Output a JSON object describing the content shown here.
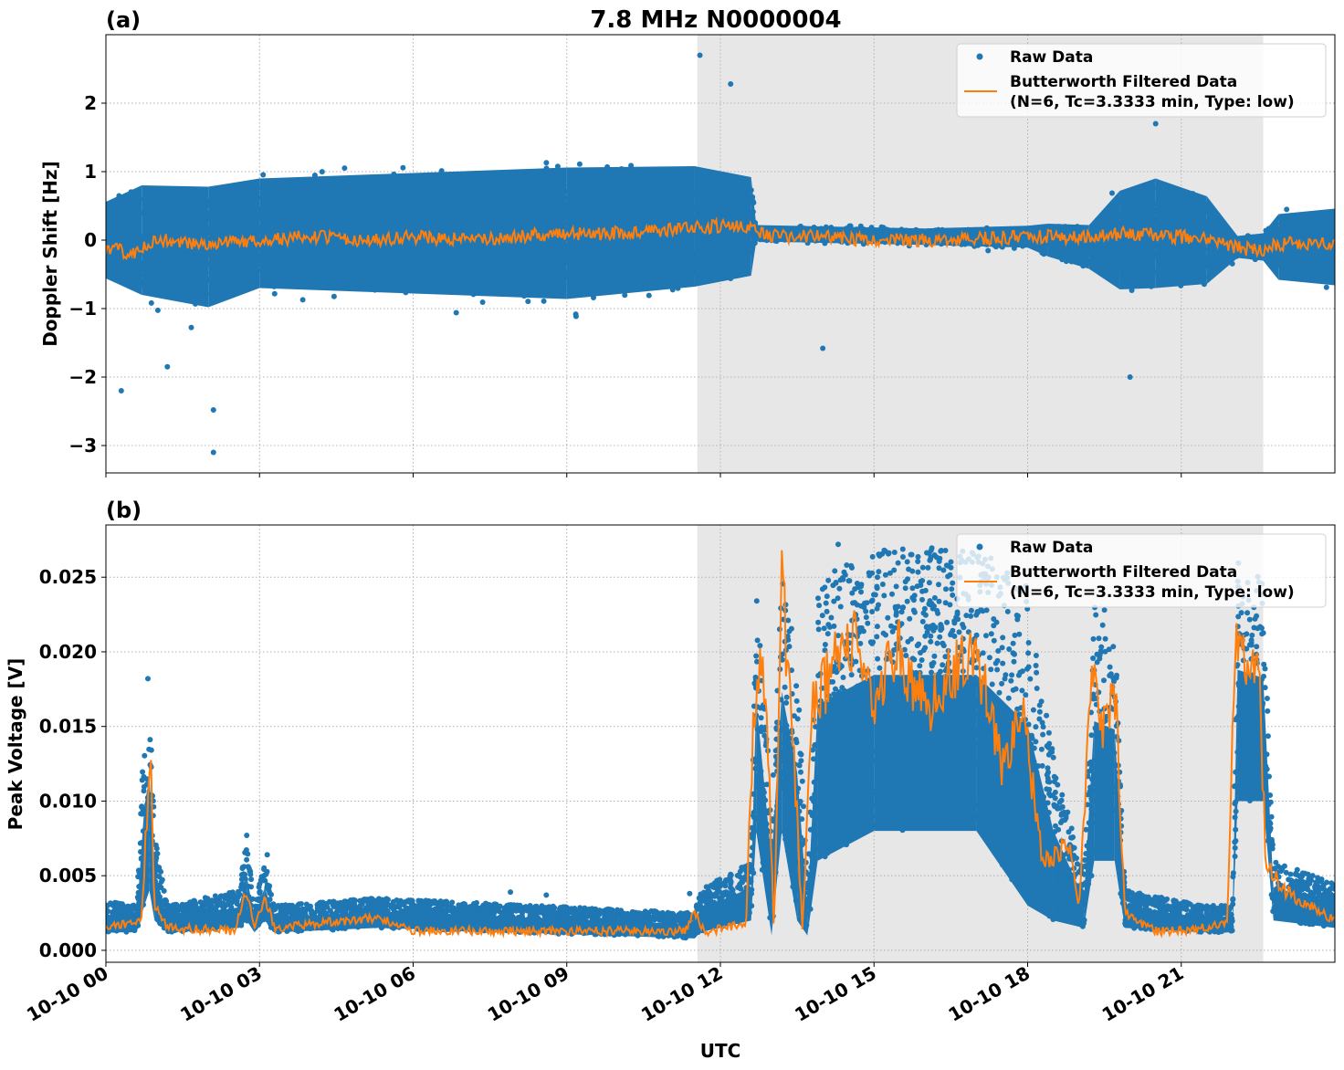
{
  "figure_title": "7.8 MHz N0000004",
  "colors": {
    "raw": "#1f77b4",
    "filtered": "#ff7f0e",
    "shade": "#e7e7e7",
    "grid": "#b0b0b0"
  },
  "x_ticks": [
    "10-10 00",
    "10-10 03",
    "10-10 06",
    "10-10 09",
    "10-10 12",
    "10-10 15",
    "10-10 18",
    "10-10 21"
  ],
  "xlabel": "UTC",
  "legend": {
    "raw": "Raw Data",
    "filtered_line1": "Butterworth Filtered Data",
    "filtered_line2": "(N=6, Tc=3.3333 min, Type: low)"
  },
  "chart_data": [
    {
      "type": "scatter",
      "panel_label": "(a)",
      "title": "7.8 MHz N0000004",
      "xlabel": "",
      "ylabel": "Doppler Shift [Hz]",
      "x_unit": "hours UTC on 10-10",
      "xlim": [
        0,
        24
      ],
      "ylim": [
        -3.4,
        3.0
      ],
      "y_ticks": [
        "−3",
        "−2",
        "−1",
        "0",
        "1",
        "2"
      ],
      "y_tick_values": [
        -3,
        -2,
        -1,
        0,
        1,
        2
      ],
      "shaded_region": [
        11.55,
        22.6
      ],
      "grid": true,
      "legend_position": "top-right",
      "series": [
        {
          "name": "Raw Data",
          "kind": "points",
          "spread_profile": [
            [
              0,
              0.0,
              0.7
            ],
            [
              0.7,
              0.0,
              1.0
            ],
            [
              2.0,
              -0.1,
              1.1
            ],
            [
              3.0,
              0.1,
              1.0
            ],
            [
              6.0,
              0.1,
              1.1
            ],
            [
              9.0,
              0.1,
              1.2
            ],
            [
              11.5,
              0.2,
              1.1
            ],
            [
              12.6,
              0.2,
              0.9
            ],
            [
              12.7,
              0.1,
              0.15
            ],
            [
              16.0,
              0.05,
              0.15
            ],
            [
              18.0,
              0.05,
              0.2
            ],
            [
              18.4,
              0.0,
              0.3
            ],
            [
              19.2,
              -0.1,
              0.4
            ],
            [
              19.8,
              0.0,
              0.9
            ],
            [
              20.5,
              0.1,
              1.0
            ],
            [
              21.5,
              0.0,
              0.8
            ],
            [
              22.1,
              -0.1,
              0.2
            ],
            [
              22.6,
              -0.1,
              0.25
            ],
            [
              22.9,
              -0.1,
              0.6
            ],
            [
              24,
              -0.1,
              0.7
            ]
          ],
          "outliers": [
            [
              2.1,
              -3.1
            ],
            [
              2.1,
              -2.48
            ],
            [
              11.6,
              2.7
            ],
            [
              12.2,
              2.28
            ],
            [
              14.0,
              -1.58
            ],
            [
              20.5,
              1.7
            ],
            [
              20.0,
              -2.0
            ],
            [
              1.2,
              -1.85
            ],
            [
              0.3,
              -2.2
            ]
          ]
        },
        {
          "name": "Butterworth Filtered Data",
          "kind": "line",
          "points": [
            [
              0,
              -0.1
            ],
            [
              0.5,
              -0.2
            ],
            [
              1.0,
              0.0
            ],
            [
              2.0,
              -0.05
            ],
            [
              3.0,
              0.0
            ],
            [
              4.0,
              0.05
            ],
            [
              5.0,
              0.0
            ],
            [
              6.0,
              0.05
            ],
            [
              7.0,
              0.0
            ],
            [
              8.0,
              0.05
            ],
            [
              9.0,
              0.1
            ],
            [
              10.0,
              0.1
            ],
            [
              11.0,
              0.15
            ],
            [
              12.0,
              0.2
            ],
            [
              12.6,
              0.2
            ],
            [
              12.8,
              0.1
            ],
            [
              13.2,
              0.05
            ],
            [
              14.0,
              0.05
            ],
            [
              15.0,
              0.0
            ],
            [
              16.0,
              0.0
            ],
            [
              17.0,
              0.02
            ],
            [
              18.0,
              0.05
            ],
            [
              19.0,
              0.05
            ],
            [
              20.0,
              0.1
            ],
            [
              21.0,
              0.05
            ],
            [
              21.5,
              0.0
            ],
            [
              22.0,
              -0.1
            ],
            [
              22.5,
              -0.15
            ],
            [
              23.0,
              -0.05
            ],
            [
              24.0,
              -0.05
            ]
          ]
        }
      ]
    },
    {
      "type": "scatter",
      "panel_label": "(b)",
      "xlabel": "UTC",
      "ylabel": "Peak Voltage [V]",
      "x_unit": "hours UTC on 10-10",
      "xlim": [
        0,
        24
      ],
      "ylim": [
        -0.0008,
        0.0285
      ],
      "y_ticks": [
        "0.000",
        "0.005",
        "0.010",
        "0.015",
        "0.020",
        "0.025"
      ],
      "y_tick_values": [
        0,
        0.005,
        0.01,
        0.015,
        0.02,
        0.025
      ],
      "shaded_region": [
        11.55,
        22.6
      ],
      "grid": true,
      "legend_position": "top-right",
      "series": [
        {
          "name": "Raw Data",
          "kind": "points",
          "envelope": [
            [
              0,
              0.0012,
              0.0033
            ],
            [
              0.6,
              0.0012,
              0.003
            ],
            [
              0.75,
              0.003,
              0.015
            ],
            [
              0.85,
              0.004,
              0.018
            ],
            [
              0.95,
              0.002,
              0.008
            ],
            [
              1.2,
              0.0012,
              0.003
            ],
            [
              2.6,
              0.0015,
              0.004
            ],
            [
              2.75,
              0.002,
              0.0075
            ],
            [
              2.9,
              0.0012,
              0.003
            ],
            [
              3.1,
              0.002,
              0.006
            ],
            [
              3.3,
              0.0012,
              0.003
            ],
            [
              5.3,
              0.0015,
              0.0035
            ],
            [
              11.5,
              0.0008,
              0.0025
            ],
            [
              11.6,
              0.0012,
              0.004
            ],
            [
              12.6,
              0.002,
              0.006
            ],
            [
              12.7,
              0.008,
              0.024
            ],
            [
              13.0,
              0.001,
              0.01
            ],
            [
              13.2,
              0.008,
              0.025
            ],
            [
              13.5,
              0.002,
              0.02
            ],
            [
              13.7,
              0.001,
              0.004
            ],
            [
              13.9,
              0.006,
              0.025
            ],
            [
              15.0,
              0.008,
              0.027
            ],
            [
              17.0,
              0.008,
              0.027
            ],
            [
              18.0,
              0.003,
              0.025
            ],
            [
              18.5,
              0.002,
              0.013
            ],
            [
              19.1,
              0.0015,
              0.005
            ],
            [
              19.3,
              0.006,
              0.023
            ],
            [
              19.7,
              0.006,
              0.022
            ],
            [
              19.9,
              0.0015,
              0.004
            ],
            [
              21.5,
              0.0012,
              0.003
            ],
            [
              22.0,
              0.0012,
              0.003
            ],
            [
              22.1,
              0.01,
              0.026
            ],
            [
              22.6,
              0.01,
              0.025
            ],
            [
              22.8,
              0.002,
              0.006
            ],
            [
              24,
              0.0015,
              0.0045
            ]
          ],
          "outliers": [
            [
              0.82,
              0.0182
            ],
            [
              2.75,
              0.0077
            ],
            [
              3.15,
              0.0064
            ],
            [
              7.9,
              0.0039
            ],
            [
              8.6,
              0.0037
            ],
            [
              11.4,
              0.0038
            ],
            [
              14.3,
              0.0272
            ],
            [
              15.2,
              0.0268
            ],
            [
              19.5,
              0.0228
            ]
          ]
        },
        {
          "name": "Butterworth Filtered Data",
          "kind": "line",
          "points": [
            [
              0,
              0.0015
            ],
            [
              0.4,
              0.0018
            ],
            [
              0.7,
              0.0022
            ],
            [
              0.8,
              0.009
            ],
            [
              0.87,
              0.013
            ],
            [
              0.95,
              0.003
            ],
            [
              1.2,
              0.0015
            ],
            [
              2.5,
              0.0013
            ],
            [
              2.75,
              0.004
            ],
            [
              2.9,
              0.0015
            ],
            [
              3.1,
              0.0035
            ],
            [
              3.3,
              0.0015
            ],
            [
              5.3,
              0.0022
            ],
            [
              6.0,
              0.0013
            ],
            [
              11.3,
              0.0013
            ],
            [
              11.5,
              0.0025
            ],
            [
              11.7,
              0.0012
            ],
            [
              12.5,
              0.0018
            ],
            [
              12.65,
              0.016
            ],
            [
              12.8,
              0.02
            ],
            [
              12.95,
              0.012
            ],
            [
              13.05,
              0.001
            ],
            [
              13.2,
              0.025
            ],
            [
              13.45,
              0.012
            ],
            [
              13.6,
              0.0015
            ],
            [
              13.8,
              0.016
            ],
            [
              14.2,
              0.019
            ],
            [
              14.6,
              0.021
            ],
            [
              15.0,
              0.017
            ],
            [
              15.5,
              0.02
            ],
            [
              16.0,
              0.016
            ],
            [
              16.5,
              0.019
            ],
            [
              17.0,
              0.02
            ],
            [
              17.5,
              0.012
            ],
            [
              17.9,
              0.016
            ],
            [
              18.3,
              0.006
            ],
            [
              18.8,
              0.007
            ],
            [
              19.0,
              0.003
            ],
            [
              19.25,
              0.018
            ],
            [
              19.5,
              0.015
            ],
            [
              19.7,
              0.018
            ],
            [
              19.9,
              0.0025
            ],
            [
              20.5,
              0.0013
            ],
            [
              21.0,
              0.0013
            ],
            [
              21.9,
              0.0018
            ],
            [
              22.05,
              0.022
            ],
            [
              22.3,
              0.019
            ],
            [
              22.5,
              0.02
            ],
            [
              22.65,
              0.006
            ],
            [
              23.0,
              0.004
            ],
            [
              24,
              0.002
            ]
          ]
        }
      ]
    }
  ]
}
